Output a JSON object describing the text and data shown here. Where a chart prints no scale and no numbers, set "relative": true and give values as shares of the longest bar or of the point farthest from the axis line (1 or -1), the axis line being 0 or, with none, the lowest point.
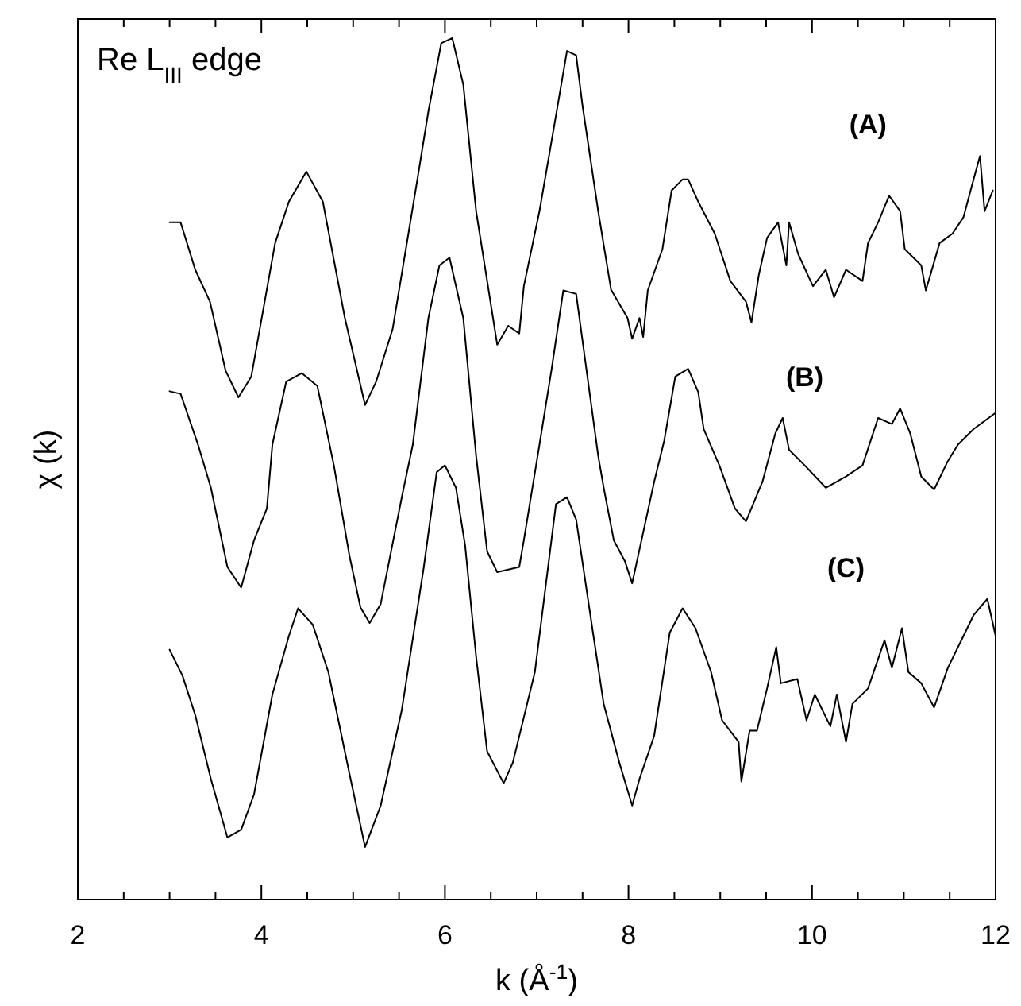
{
  "chart_data": {
    "type": "line",
    "title": "Re L$_{III}$ edge",
    "xlabel": "k (Å$^{-1}$)",
    "ylabel": "χ (k)",
    "relative": true,
    "xlim": [
      2,
      12
    ],
    "xticks": [
      2,
      {
        "value": 2.5,
        "label": null
      },
      {
        "value": 3,
        "label": null
      },
      {
        "value": 3.5,
        "label": null
      },
      4,
      {
        "value": 4.5,
        "label": null
      },
      {
        "value": 5,
        "label": null
      },
      {
        "value": 5.5,
        "label": null
      },
      6,
      {
        "value": 6.5,
        "label": null
      },
      {
        "value": 7,
        "label": null
      },
      {
        "value": 7.5,
        "label": null
      },
      8,
      {
        "value": 8.5,
        "label": null
      },
      {
        "value": 9,
        "label": null
      },
      {
        "value": 9.5,
        "label": null
      },
      10,
      {
        "value": 10.5,
        "label": null
      },
      {
        "value": 11,
        "label": null
      },
      {
        "value": 11.5,
        "label": null
      },
      12
    ],
    "series": [
      {
        "name": "(A)",
        "color": "#000000",
        "x": [
          3.0,
          3.12,
          3.28,
          3.44,
          3.61,
          3.75,
          3.89,
          4.15,
          4.3,
          4.49,
          4.67,
          4.91,
          5.13,
          5.25,
          5.43,
          5.7,
          5.82,
          5.96,
          6.08,
          6.2,
          6.34,
          6.57,
          6.69,
          6.81,
          6.86,
          7.03,
          7.21,
          7.33,
          7.43,
          7.5,
          7.67,
          7.81,
          7.99,
          8.04,
          8.12,
          8.16,
          8.21,
          8.37,
          8.47,
          8.59,
          8.65,
          8.76,
          8.94,
          9.11,
          9.28,
          9.34,
          9.42,
          9.51,
          9.63,
          9.72,
          9.75,
          9.85,
          10.01,
          10.15,
          10.24,
          10.37,
          10.55,
          10.61,
          10.72,
          10.84,
          10.96,
          11.01,
          11.19,
          11.24,
          11.39,
          11.53,
          11.65,
          11.74,
          11.83,
          11.88,
          11.97
        ],
        "values": [
          0.786,
          0.786,
          0.731,
          0.694,
          0.614,
          0.583,
          0.607,
          0.762,
          0.81,
          0.845,
          0.81,
          0.675,
          0.574,
          0.601,
          0.662,
          0.836,
          0.915,
          0.994,
          1.0,
          0.946,
          0.799,
          0.644,
          0.666,
          0.657,
          0.712,
          0.799,
          0.91,
          0.985,
          0.98,
          0.921,
          0.799,
          0.708,
          0.675,
          0.651,
          0.675,
          0.653,
          0.707,
          0.755,
          0.823,
          0.836,
          0.836,
          0.81,
          0.773,
          0.718,
          0.694,
          0.67,
          0.725,
          0.768,
          0.786,
          0.736,
          0.786,
          0.749,
          0.712,
          0.731,
          0.699,
          0.731,
          0.718,
          0.762,
          0.786,
          0.817,
          0.799,
          0.755,
          0.736,
          0.707,
          0.762,
          0.773,
          0.792,
          0.828,
          0.863,
          0.799,
          0.823
        ]
      },
      {
        "name": "(B)",
        "color": "#000000",
        "x": [
          3.0,
          3.12,
          3.31,
          3.45,
          3.63,
          3.78,
          3.92,
          4.06,
          4.12,
          4.27,
          4.44,
          4.61,
          4.79,
          4.96,
          5.08,
          5.18,
          5.3,
          5.53,
          5.65,
          5.82,
          5.94,
          6.05,
          6.2,
          6.34,
          6.46,
          6.57,
          6.81,
          6.86,
          7.03,
          7.16,
          7.29,
          7.43,
          7.67,
          7.73,
          7.84,
          7.96,
          8.04,
          8.28,
          8.39,
          8.51,
          8.65,
          8.76,
          8.82,
          8.99,
          9.16,
          9.28,
          9.46,
          9.6,
          9.68,
          9.75,
          9.92,
          10.15,
          10.37,
          10.55,
          10.72,
          10.87,
          10.96,
          11.07,
          11.19,
          11.33,
          11.48,
          11.59,
          11.76,
          12.0
        ],
        "values": [
          0.59,
          0.587,
          0.528,
          0.478,
          0.386,
          0.362,
          0.417,
          0.454,
          0.528,
          0.601,
          0.611,
          0.596,
          0.504,
          0.399,
          0.339,
          0.321,
          0.343,
          0.467,
          0.528,
          0.675,
          0.736,
          0.745,
          0.675,
          0.515,
          0.404,
          0.38,
          0.386,
          0.417,
          0.528,
          0.614,
          0.707,
          0.703,
          0.515,
          0.478,
          0.417,
          0.393,
          0.367,
          0.485,
          0.533,
          0.607,
          0.616,
          0.589,
          0.546,
          0.504,
          0.454,
          0.439,
          0.485,
          0.541,
          0.559,
          0.522,
          0.504,
          0.478,
          0.491,
          0.504,
          0.559,
          0.552,
          0.57,
          0.541,
          0.491,
          0.476,
          0.509,
          0.528,
          0.546,
          0.565
        ]
      },
      {
        "name": "(C)",
        "color": "#000000",
        "x": [
          3.0,
          3.14,
          3.28,
          3.45,
          3.63,
          3.78,
          3.92,
          4.12,
          4.3,
          4.4,
          4.56,
          4.73,
          4.96,
          5.13,
          5.3,
          5.53,
          5.77,
          5.91,
          6.0,
          6.12,
          6.22,
          6.34,
          6.46,
          6.64,
          6.74,
          6.98,
          7.21,
          7.33,
          7.43,
          7.61,
          7.73,
          7.9,
          8.04,
          8.12,
          8.28,
          8.45,
          8.59,
          8.73,
          8.9,
          9.02,
          9.2,
          9.23,
          9.32,
          9.4,
          9.51,
          9.61,
          9.66,
          9.84,
          9.94,
          10.03,
          10.2,
          10.27,
          10.37,
          10.44,
          10.61,
          10.79,
          10.87,
          10.98,
          11.05,
          11.19,
          11.33,
          11.48,
          11.65,
          11.76,
          11.91,
          12.0
        ],
        "values": [
          0.29,
          0.26,
          0.214,
          0.14,
          0.072,
          0.081,
          0.122,
          0.238,
          0.306,
          0.338,
          0.319,
          0.264,
          0.146,
          0.061,
          0.109,
          0.22,
          0.386,
          0.496,
          0.504,
          0.478,
          0.411,
          0.282,
          0.172,
          0.135,
          0.159,
          0.264,
          0.459,
          0.467,
          0.441,
          0.312,
          0.227,
          0.159,
          0.109,
          0.14,
          0.19,
          0.31,
          0.338,
          0.315,
          0.264,
          0.208,
          0.183,
          0.137,
          0.196,
          0.196,
          0.245,
          0.293,
          0.251,
          0.256,
          0.208,
          0.238,
          0.201,
          0.238,
          0.183,
          0.227,
          0.245,
          0.301,
          0.269,
          0.315,
          0.264,
          0.251,
          0.223,
          0.269,
          0.306,
          0.33,
          0.349,
          0.306
        ]
      }
    ]
  }
}
